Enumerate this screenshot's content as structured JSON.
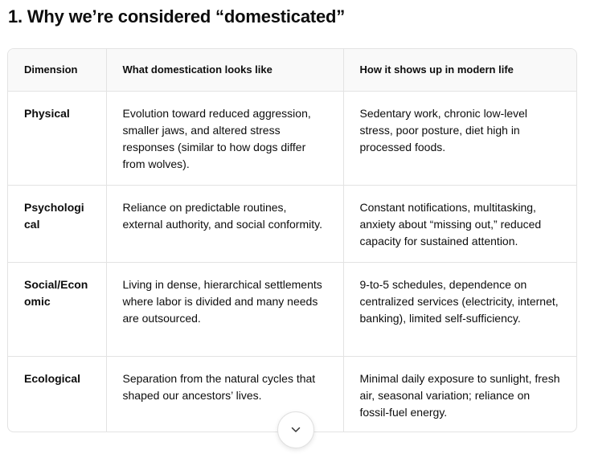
{
  "heading": "1. Why we’re considered “domesticated”",
  "table": {
    "headers": [
      "Dimension",
      "What domestication looks like",
      "How it shows up in modern life"
    ],
    "rows": [
      {
        "dimension": "Physical",
        "looks_like": "Evolution toward reduced aggression, smaller jaws, and altered stress responses (similar to how dogs differ from wolves).",
        "modern_life": "Sedentary work, chronic low-level stress, poor posture, diet high in processed foods."
      },
      {
        "dimension": "Psychological",
        "looks_like": "Reliance on predictable routines, external authority, and social conformity.",
        "modern_life": "Constant notifications, multitasking, anxiety about “missing out,” reduced capacity for sustained attention."
      },
      {
        "dimension": "Social/Economic",
        "looks_like": "Living in dense, hierarchical settlements where labor is divided and many needs are outsourced.",
        "modern_life": "9-to-5 schedules, dependence on centralized services (electricity, internet, banking), limited self-sufficiency."
      },
      {
        "dimension": "Ecological",
        "looks_like": "Separation from the natural cycles that shaped our ancestors’ lives.",
        "modern_life": "Minimal daily exposure to sunlight, fresh air, seasonal variation; reliance on fossil-fuel energy."
      }
    ]
  },
  "scroll_button": {
    "icon": "chevron-down-icon"
  }
}
